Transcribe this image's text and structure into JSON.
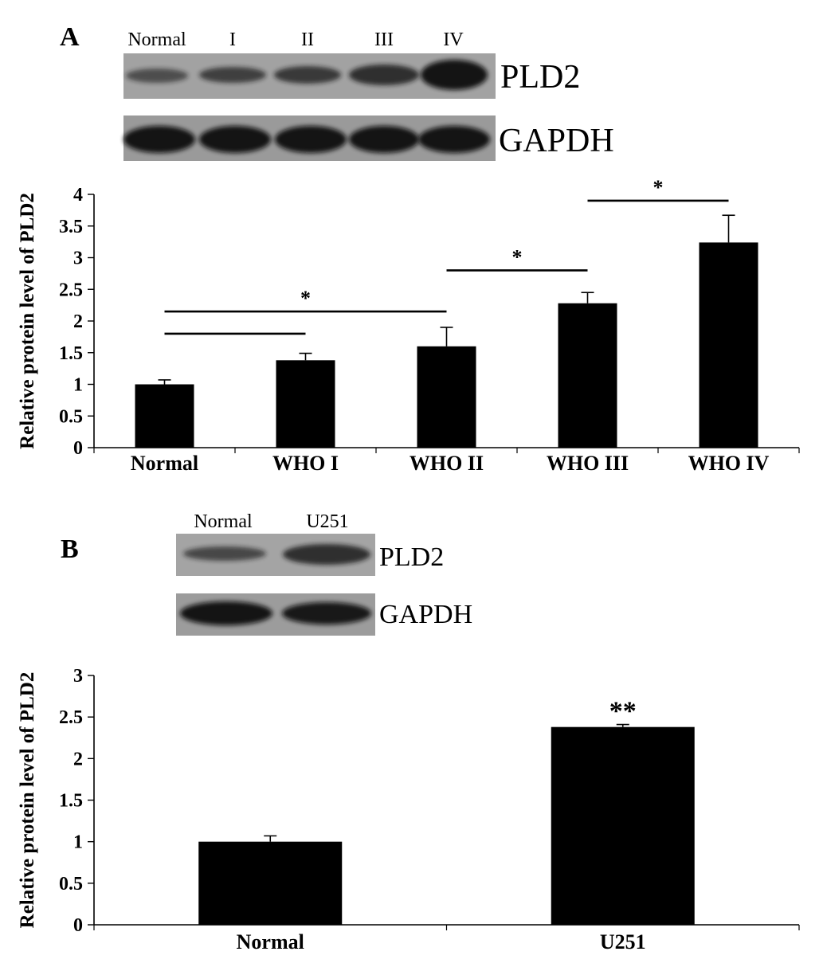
{
  "panels": [
    {
      "label": "A",
      "blot": {
        "lanes": [
          "Normal",
          "I",
          "II",
          "III",
          "IV"
        ],
        "rows": [
          {
            "name": "PLD2",
            "intensities": [
              0.45,
              0.55,
              0.6,
              0.72,
              0.95
            ]
          },
          {
            "name": "GAPDH",
            "intensities": [
              0.9,
              0.9,
              0.9,
              0.9,
              0.9
            ]
          }
        ]
      },
      "significance": [
        {
          "from": 0,
          "to": 1,
          "mark": ""
        },
        {
          "from": 0,
          "to": 2,
          "mark": "*"
        },
        {
          "from": 2,
          "to": 3,
          "mark": "*"
        },
        {
          "from": 3,
          "to": 4,
          "mark": "*"
        }
      ]
    },
    {
      "label": "B",
      "blot": {
        "lanes": [
          "Normal",
          "U251"
        ],
        "rows": [
          {
            "name": "PLD2",
            "intensities": [
              0.55,
              0.8
            ]
          },
          {
            "name": "GAPDH",
            "intensities": [
              0.9,
              0.9
            ]
          }
        ]
      },
      "bar_marks": [
        "",
        "**"
      ]
    }
  ],
  "chart_data": [
    {
      "type": "bar",
      "categories": [
        "Normal",
        "WHO I",
        "WHO II",
        "WHO III",
        "WHO IV"
      ],
      "values": [
        1.0,
        1.38,
        1.6,
        2.28,
        3.24
      ],
      "errors": [
        0.07,
        0.11,
        0.3,
        0.17,
        0.43
      ],
      "ylabel": "Relative protein level of PLD2",
      "ylim": [
        0,
        4
      ],
      "yticks": [
        "0",
        "0.5",
        "1",
        "1.5",
        "2",
        "2.5",
        "3",
        "3.5",
        "4"
      ]
    },
    {
      "type": "bar",
      "categories": [
        "Normal",
        "U251"
      ],
      "values": [
        1.0,
        2.38
      ],
      "errors": [
        0.07,
        0.03
      ],
      "ylabel": "Relative protein level of PLD2",
      "ylim": [
        0,
        3
      ],
      "yticks": [
        "0",
        "0.5",
        "1",
        "1.5",
        "2",
        "2.5",
        "3"
      ]
    }
  ]
}
